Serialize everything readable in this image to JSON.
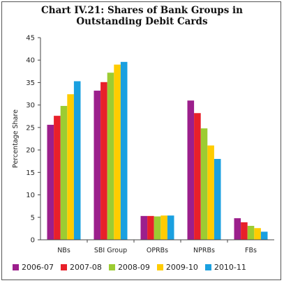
{
  "chart_data": {
    "type": "bar",
    "title_line1": "Chart IV.21: Shares of Bank Groups in",
    "title_line2": "Outstanding Debit Cards",
    "ylabel": "Percentage Share",
    "ylim": [
      0,
      45
    ],
    "yticks": [
      "0",
      "5",
      "10",
      "15",
      "20",
      "25",
      "30",
      "35",
      "40",
      "45"
    ],
    "categories": [
      "NBs",
      "SBI Group",
      "OPRBs",
      "NPRBs",
      "FBs"
    ],
    "legend_position": "bottom",
    "series": [
      {
        "name": "2006-07",
        "color": "#9c1f8c",
        "values": [
          25.6,
          33.2,
          5.3,
          31.0,
          4.8
        ]
      },
      {
        "name": "2007-08",
        "color": "#e8202a",
        "values": [
          27.6,
          35.1,
          5.3,
          28.2,
          3.9
        ]
      },
      {
        "name": "2008-09",
        "color": "#9ccc32",
        "values": [
          29.8,
          37.2,
          5.2,
          24.8,
          3.1
        ]
      },
      {
        "name": "2009-10",
        "color": "#ffcc00",
        "values": [
          32.4,
          39.0,
          5.4,
          21.0,
          2.6
        ]
      },
      {
        "name": "2010-11",
        "color": "#1aa0e0",
        "values": [
          35.3,
          39.6,
          5.4,
          18.0,
          1.8
        ]
      }
    ]
  }
}
